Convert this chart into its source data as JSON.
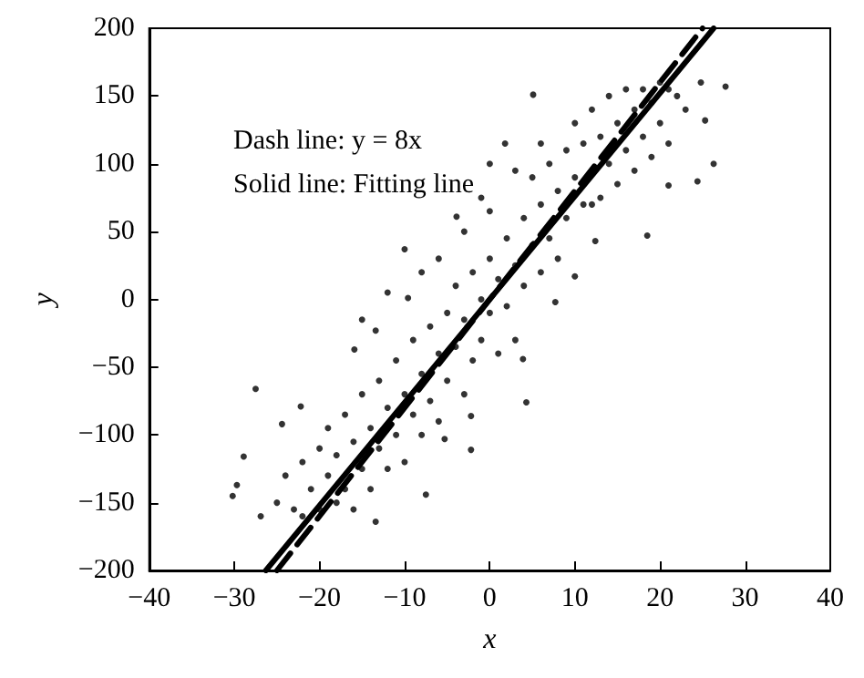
{
  "chart_data": {
    "type": "scatter",
    "xlabel": "x",
    "ylabel": "y",
    "xlim": [
      -40,
      40
    ],
    "xticks": [
      -40,
      -30,
      -20,
      -10,
      0,
      10,
      20,
      30,
      40
    ],
    "ylim": [
      -200,
      200
    ],
    "yticks": [
      -200,
      -150,
      -100,
      -50,
      0,
      50,
      100,
      150,
      200
    ],
    "grid": false,
    "annotations": [
      "Dash line: y = 8x",
      "Solid line: Fitting line"
    ],
    "series": [
      {
        "marker": "circle",
        "color": "#000000",
        "x": [
          -27.5,
          -28.9,
          -29.7,
          -30.2,
          -24.4,
          -22.2,
          -26.9,
          -13.4,
          -15.9,
          -13.4,
          -7.5,
          -2.2,
          -5.3,
          4.3,
          3.9,
          -2.2,
          18.5,
          27.7,
          26.3,
          24.4,
          21,
          5.1,
          12.4,
          10,
          7.7,
          1.8,
          25.3,
          24.8,
          -10,
          -3.9,
          0,
          -9.6,
          -25,
          -24,
          -23,
          -22,
          -22,
          -21,
          -20,
          -20,
          -19,
          -19,
          -18,
          -18,
          -17,
          -17,
          -16,
          -16,
          -15,
          -15,
          -14,
          -14,
          -13,
          -13,
          -12,
          -12,
          -11,
          -11,
          -10,
          -10,
          -9,
          -9,
          -8,
          -8,
          -7,
          -7,
          -6,
          -6,
          -5,
          -5,
          -4,
          -4,
          -3,
          -3,
          -2,
          -2,
          -1,
          -1,
          0,
          0,
          1,
          1,
          2,
          2,
          3,
          3,
          4,
          4,
          5,
          5,
          6,
          6,
          7,
          7,
          8,
          8,
          9,
          9,
          10,
          10,
          11,
          11,
          12,
          12,
          13,
          13,
          14,
          14,
          15,
          15,
          16,
          16,
          17,
          17,
          18,
          18,
          19,
          19,
          20,
          20,
          21,
          22,
          23,
          21,
          -8,
          -6,
          -12,
          -15,
          -3,
          3,
          6,
          0,
          -1
        ],
        "values": [
          -66,
          -116,
          -137,
          -145,
          -92,
          -79,
          -160,
          -164,
          -37,
          -23,
          -144,
          -111,
          -103,
          -76,
          -44,
          -86,
          47,
          157,
          100,
          87,
          84,
          151,
          43,
          17,
          -2,
          115,
          132,
          160,
          37,
          61,
          65,
          1,
          -150,
          -130,
          -155,
          -120,
          -160,
          -140,
          -110,
          -155,
          -130,
          -95,
          -150,
          -115,
          -85,
          -140,
          -105,
          -155,
          -70,
          -125,
          -95,
          -140,
          -60,
          -110,
          -80,
          -125,
          -45,
          -100,
          -70,
          -120,
          -30,
          -85,
          -55,
          -100,
          -20,
          -75,
          -40,
          -90,
          -10,
          -60,
          10,
          -35,
          -70,
          -15,
          20,
          -45,
          0,
          -30,
          30,
          -10,
          -40,
          15,
          45,
          -5,
          25,
          -30,
          60,
          10,
          40,
          90,
          20,
          70,
          100,
          45,
          30,
          80,
          110,
          60,
          90,
          130,
          70,
          115,
          140,
          70,
          75,
          120,
          150,
          100,
          130,
          85,
          155,
          110,
          140,
          95,
          120,
          155,
          145,
          105,
          130,
          160,
          115,
          150,
          140,
          155,
          20,
          30,
          5,
          -15,
          50,
          95,
          115,
          100,
          75
        ]
      },
      {
        "type": "line",
        "color": "#000000",
        "line_style": "solid",
        "x": [
          -26.3,
          26.3
        ],
        "values": [
          -200,
          200
        ]
      },
      {
        "type": "line",
        "color": "#000000",
        "line_style": "dashed",
        "x": [
          -25,
          25
        ],
        "values": [
          -200,
          200
        ]
      }
    ]
  }
}
